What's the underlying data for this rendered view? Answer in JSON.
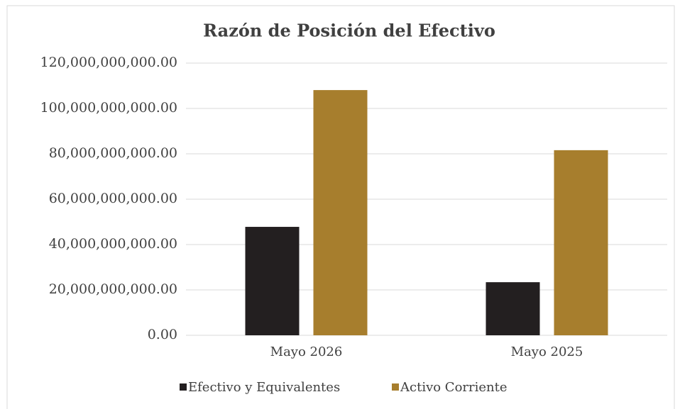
{
  "chart_data": {
    "type": "bar",
    "title": "Razón de Posición del Efectivo",
    "categories": [
      "Mayo 2026",
      "Mayo 2025"
    ],
    "series": [
      {
        "name": "Efectivo y Equivalentes",
        "color": "#231f20",
        "values": [
          47800000000,
          23400000000
        ]
      },
      {
        "name": "Activo Corriente",
        "color": "#a77e2d",
        "values": [
          108100000000,
          81600000000
        ]
      }
    ],
    "ylim": [
      0,
      120000000000
    ],
    "yticks": [
      {
        "value": 0,
        "label": "0.00"
      },
      {
        "value": 20000000000,
        "label": "20,000,000,000.00"
      },
      {
        "value": 40000000000,
        "label": "40,000,000,000.00"
      },
      {
        "value": 60000000000,
        "label": "60,000,000,000.00"
      },
      {
        "value": 80000000000,
        "label": "80,000,000,000.00"
      },
      {
        "value": 100000000000,
        "label": "100,000,000,000.00"
      },
      {
        "value": 120000000000,
        "label": "120,000,000,000.00"
      }
    ],
    "grid": true,
    "legend": "bottom"
  }
}
